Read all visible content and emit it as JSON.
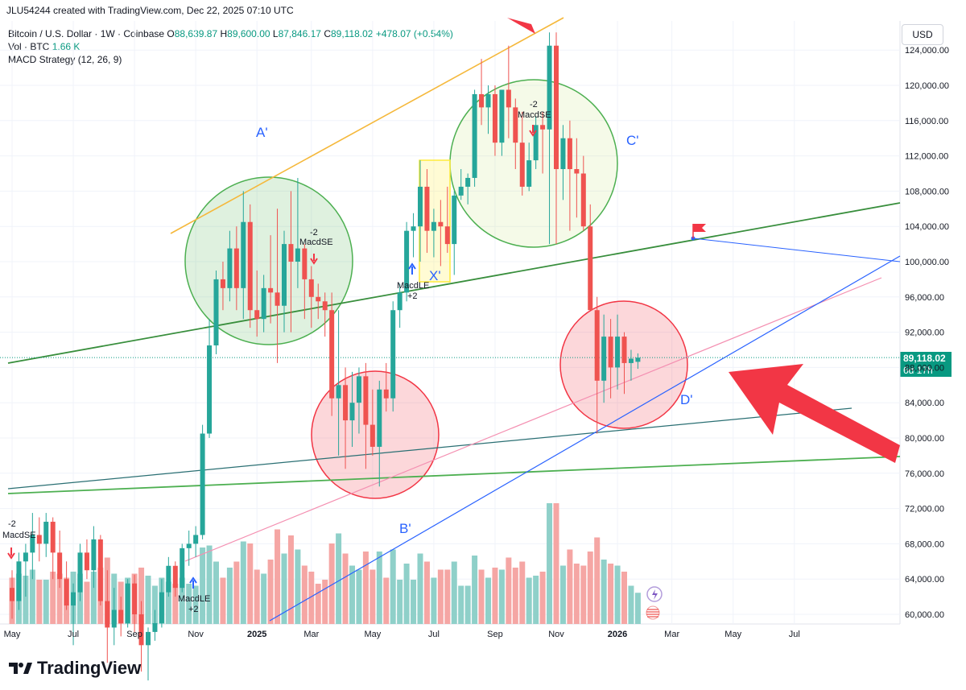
{
  "credit": "JLU54244 created with TradingView.com, Dec 22, 2025 07:10 UTC",
  "legend": {
    "symbol": "Bitcoin / U.S. Dollar · 1W · Coinbase",
    "o_label": "O",
    "o": "88,639.87",
    "h_label": "H",
    "h": "89,600.00",
    "l_label": "L",
    "l": "87,846.17",
    "c_label": "C",
    "c": "89,118.02",
    "change": "+478.07 (+0.54%)",
    "vol_label": "Vol · BTC",
    "vol": "1.66 K",
    "macd": "MACD Strategy (12, 26, 9)"
  },
  "currency": "USD",
  "last_price": {
    "value": "89,118.02",
    "countdown": "6d 17h"
  },
  "branding": "TradingView",
  "colors": {
    "up": "#26a69a",
    "down": "#ef5350",
    "vol_up": "#8fd0c9",
    "vol_down": "#f5a6a4",
    "accent_blue": "#2962ff"
  },
  "chart_data": {
    "type": "candlestick",
    "symbol": "BTCUSD",
    "interval": "1W",
    "ylim": [
      59000,
      127000
    ],
    "y_ticks": [
      60000,
      64000,
      68000,
      72000,
      76000,
      80000,
      84000,
      88000,
      92000,
      96000,
      100000,
      104000,
      108000,
      112000,
      116000,
      120000,
      124000
    ],
    "y_tick_labels": [
      "60,000.00",
      "64,000.00",
      "68,000.00",
      "72,000.00",
      "76,000.00",
      "80,000.00",
      "84,000.00",
      "88,000.00",
      "92,000.00",
      "96,000.00",
      "100,000.00",
      "104,000.00",
      "108,000.00",
      "112,000.00",
      "116,000.00",
      "120,000.00",
      "124,000.00"
    ],
    "x_ticks": [
      {
        "label": "May",
        "i": 0
      },
      {
        "label": "Jul",
        "i": 9
      },
      {
        "label": "Sep",
        "i": 18
      },
      {
        "label": "Nov",
        "i": 27
      },
      {
        "label": "2025",
        "i": 36
      },
      {
        "label": "Mar",
        "i": 44
      },
      {
        "label": "May",
        "i": 53
      },
      {
        "label": "Jul",
        "i": 62
      },
      {
        "label": "Sep",
        "i": 71
      },
      {
        "label": "Nov",
        "i": 80
      },
      {
        "label": "2026",
        "i": 89
      },
      {
        "label": "Mar",
        "i": 97
      },
      {
        "label": "May",
        "i": 106
      },
      {
        "label": "Jul",
        "i": 115
      }
    ],
    "candles": [
      {
        "o": 63000,
        "h": 65000,
        "l": 59500,
        "c": 61500
      },
      {
        "o": 61500,
        "h": 67000,
        "l": 60500,
        "c": 66000
      },
      {
        "o": 66000,
        "h": 68000,
        "l": 62000,
        "c": 67000
      },
      {
        "o": 67000,
        "h": 71500,
        "l": 64000,
        "c": 69000
      },
      {
        "o": 69000,
        "h": 71000,
        "l": 66000,
        "c": 68000
      },
      {
        "o": 68000,
        "h": 71500,
        "l": 66500,
        "c": 70500
      },
      {
        "o": 70500,
        "h": 71000,
        "l": 64000,
        "c": 67000
      },
      {
        "o": 67000,
        "h": 69500,
        "l": 63000,
        "c": 64000
      },
      {
        "o": 64000,
        "h": 66000,
        "l": 60500,
        "c": 61000
      },
      {
        "o": 61000,
        "h": 63500,
        "l": 56500,
        "c": 62500
      },
      {
        "o": 62500,
        "h": 68000,
        "l": 61500,
        "c": 67000
      },
      {
        "o": 67000,
        "h": 68500,
        "l": 64000,
        "c": 65000
      },
      {
        "o": 65000,
        "h": 70000,
        "l": 63000,
        "c": 68500
      },
      {
        "o": 68500,
        "h": 69000,
        "l": 61000,
        "c": 61500
      },
      {
        "o": 61500,
        "h": 65000,
        "l": 54500,
        "c": 58500
      },
      {
        "o": 58500,
        "h": 63000,
        "l": 56500,
        "c": 60500
      },
      {
        "o": 60500,
        "h": 62000,
        "l": 57500,
        "c": 59000
      },
      {
        "o": 59000,
        "h": 64000,
        "l": 58500,
        "c": 63500
      },
      {
        "o": 63500,
        "h": 64500,
        "l": 58000,
        "c": 60000
      },
      {
        "o": 60000,
        "h": 61500,
        "l": 53500,
        "c": 56500
      },
      {
        "o": 56500,
        "h": 58500,
        "l": 52500,
        "c": 58000
      },
      {
        "o": 58000,
        "h": 60500,
        "l": 57000,
        "c": 59000
      },
      {
        "o": 59000,
        "h": 64000,
        "l": 58500,
        "c": 62500
      },
      {
        "o": 62500,
        "h": 66500,
        "l": 62000,
        "c": 65500
      },
      {
        "o": 65500,
        "h": 66000,
        "l": 62000,
        "c": 63000
      },
      {
        "o": 63000,
        "h": 68000,
        "l": 62500,
        "c": 67500
      },
      {
        "o": 67500,
        "h": 69500,
        "l": 65500,
        "c": 68000
      },
      {
        "o": 68000,
        "h": 70000,
        "l": 66500,
        "c": 69000
      },
      {
        "o": 69000,
        "h": 81500,
        "l": 68500,
        "c": 80500
      },
      {
        "o": 80500,
        "h": 93500,
        "l": 80000,
        "c": 90500
      },
      {
        "o": 90500,
        "h": 99000,
        "l": 89500,
        "c": 98000
      },
      {
        "o": 98000,
        "h": 100000,
        "l": 94500,
        "c": 97000
      },
      {
        "o": 97000,
        "h": 103500,
        "l": 95500,
        "c": 101500
      },
      {
        "o": 101500,
        "h": 104000,
        "l": 94500,
        "c": 97000
      },
      {
        "o": 97000,
        "h": 108000,
        "l": 93500,
        "c": 104500
      },
      {
        "o": 104500,
        "h": 106500,
        "l": 92500,
        "c": 94500
      },
      {
        "o": 94500,
        "h": 99000,
        "l": 91500,
        "c": 93500
      },
      {
        "o": 93500,
        "h": 98500,
        "l": 92000,
        "c": 97000
      },
      {
        "o": 97000,
        "h": 103000,
        "l": 93000,
        "c": 96500
      },
      {
        "o": 96500,
        "h": 106000,
        "l": 88500,
        "c": 95000
      },
      {
        "o": 95000,
        "h": 103500,
        "l": 92000,
        "c": 102000
      },
      {
        "o": 102000,
        "h": 108000,
        "l": 92000,
        "c": 100000
      },
      {
        "o": 100000,
        "h": 109500,
        "l": 97000,
        "c": 101500
      },
      {
        "o": 101500,
        "h": 102000,
        "l": 93500,
        "c": 98000
      },
      {
        "o": 98000,
        "h": 99500,
        "l": 92500,
        "c": 96000
      },
      {
        "o": 96000,
        "h": 97500,
        "l": 93500,
        "c": 95500
      },
      {
        "o": 95500,
        "h": 96500,
        "l": 91500,
        "c": 94500
      },
      {
        "o": 94500,
        "h": 96500,
        "l": 82500,
        "c": 84500
      },
      {
        "o": 84500,
        "h": 94500,
        "l": 78000,
        "c": 86000
      },
      {
        "o": 86000,
        "h": 88000,
        "l": 76500,
        "c": 82000
      },
      {
        "o": 82000,
        "h": 87500,
        "l": 79000,
        "c": 84000
      },
      {
        "o": 84000,
        "h": 88000,
        "l": 80500,
        "c": 87000
      },
      {
        "o": 87000,
        "h": 88500,
        "l": 76500,
        "c": 81500
      },
      {
        "o": 81500,
        "h": 85500,
        "l": 78000,
        "c": 79000
      },
      {
        "o": 79000,
        "h": 86500,
        "l": 74500,
        "c": 85500
      },
      {
        "o": 85500,
        "h": 88500,
        "l": 83000,
        "c": 84500
      },
      {
        "o": 84500,
        "h": 95500,
        "l": 83000,
        "c": 94500
      },
      {
        "o": 94500,
        "h": 97500,
        "l": 92500,
        "c": 96500
      },
      {
        "o": 96500,
        "h": 104500,
        "l": 95500,
        "c": 103500
      },
      {
        "o": 103500,
        "h": 105500,
        "l": 100500,
        "c": 104000
      },
      {
        "o": 104000,
        "h": 111500,
        "l": 100000,
        "c": 108500
      },
      {
        "o": 108500,
        "h": 110500,
        "l": 101000,
        "c": 103500
      },
      {
        "o": 103500,
        "h": 106000,
        "l": 100500,
        "c": 104500
      },
      {
        "o": 104500,
        "h": 107000,
        "l": 99500,
        "c": 104000
      },
      {
        "o": 104000,
        "h": 108500,
        "l": 101000,
        "c": 102000
      },
      {
        "o": 102000,
        "h": 108000,
        "l": 98500,
        "c": 107500
      },
      {
        "o": 107500,
        "h": 110500,
        "l": 107000,
        "c": 108500
      },
      {
        "o": 108500,
        "h": 110000,
        "l": 106500,
        "c": 109500
      },
      {
        "o": 109500,
        "h": 119500,
        "l": 108500,
        "c": 119000
      },
      {
        "o": 119000,
        "h": 123000,
        "l": 115500,
        "c": 117500
      },
      {
        "o": 117500,
        "h": 120000,
        "l": 114500,
        "c": 119000
      },
      {
        "o": 119000,
        "h": 120000,
        "l": 112000,
        "c": 113500
      },
      {
        "o": 113500,
        "h": 119500,
        "l": 112000,
        "c": 119500
      },
      {
        "o": 119500,
        "h": 124500,
        "l": 114000,
        "c": 117500
      },
      {
        "o": 117500,
        "h": 118500,
        "l": 110500,
        "c": 113500
      },
      {
        "o": 113500,
        "h": 117000,
        "l": 107500,
        "c": 108500
      },
      {
        "o": 108500,
        "h": 113500,
        "l": 108000,
        "c": 111500
      },
      {
        "o": 111500,
        "h": 116500,
        "l": 110500,
        "c": 115500
      },
      {
        "o": 115500,
        "h": 117000,
        "l": 110000,
        "c": 115000
      },
      {
        "o": 115000,
        "h": 126000,
        "l": 102000,
        "c": 124500
      },
      {
        "o": 124500,
        "h": 126000,
        "l": 102000,
        "c": 110500
      },
      {
        "o": 110500,
        "h": 115500,
        "l": 107000,
        "c": 114000
      },
      {
        "o": 114000,
        "h": 116000,
        "l": 103500,
        "c": 110500
      },
      {
        "o": 110500,
        "h": 114000,
        "l": 105000,
        "c": 110000
      },
      {
        "o": 110000,
        "h": 112000,
        "l": 103500,
        "c": 104000
      },
      {
        "o": 104000,
        "h": 106500,
        "l": 94500,
        "c": 94500
      },
      {
        "o": 94500,
        "h": 96000,
        "l": 80500,
        "c": 86500
      },
      {
        "o": 86500,
        "h": 94000,
        "l": 84000,
        "c": 91500
      },
      {
        "o": 91500,
        "h": 93500,
        "l": 84500,
        "c": 88000
      },
      {
        "o": 88000,
        "h": 94000,
        "l": 85500,
        "c": 91500
      },
      {
        "o": 91500,
        "h": 92000,
        "l": 85000,
        "c": 88500
      },
      {
        "o": 88500,
        "h": 90000,
        "l": 86500,
        "c": 89000
      },
      {
        "o": 88640,
        "h": 89600,
        "l": 87846,
        "c": 89118
      }
    ],
    "annotations": [
      "A'",
      "B'",
      "C'",
      "D'",
      "X'"
    ],
    "signals": [
      "-2",
      "MacdSE",
      "MacdLE",
      "+2"
    ]
  }
}
